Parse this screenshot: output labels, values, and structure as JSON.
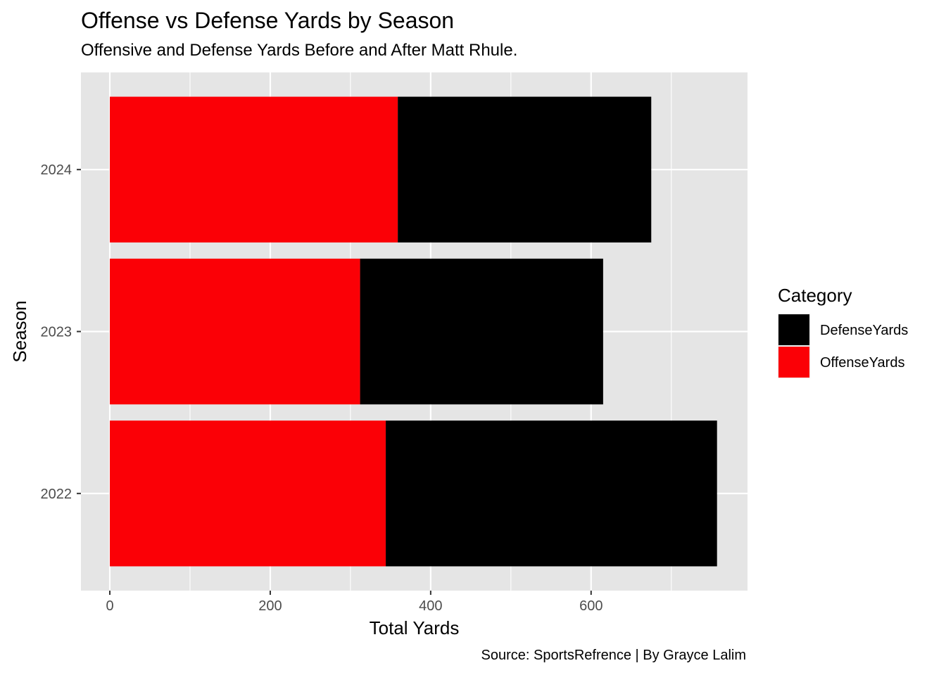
{
  "chart_data": {
    "type": "bar",
    "stacked": true,
    "orientation": "horizontal",
    "title": "Offense vs Defense Yards by Season",
    "subtitle": "Offensive and Defense Yards Before and After Matt Rhule.",
    "caption": "Source: SportsRefrence | By Grayce Lalim",
    "xlabel": "Total Yards",
    "ylabel": "Season",
    "xlim": [
      -36,
      795
    ],
    "x_ticks": [
      "0",
      "200",
      "400",
      "600"
    ],
    "categories": [
      "2022",
      "2023",
      "2024"
    ],
    "series": [
      {
        "name": "OffenseYards",
        "values": [
          344,
          312,
          359
        ],
        "color": "#fb0006"
      },
      {
        "name": "DefenseYards",
        "values": [
          413,
          303,
          316
        ],
        "color": "#000000"
      }
    ],
    "legend": {
      "title": "Category",
      "position": "right",
      "entries": [
        {
          "name": "DefenseYards",
          "color": "#000000"
        },
        {
          "name": "OffenseYards",
          "color": "#fb0006"
        }
      ]
    },
    "grid": true,
    "panel_background": "#e5e5e5"
  }
}
